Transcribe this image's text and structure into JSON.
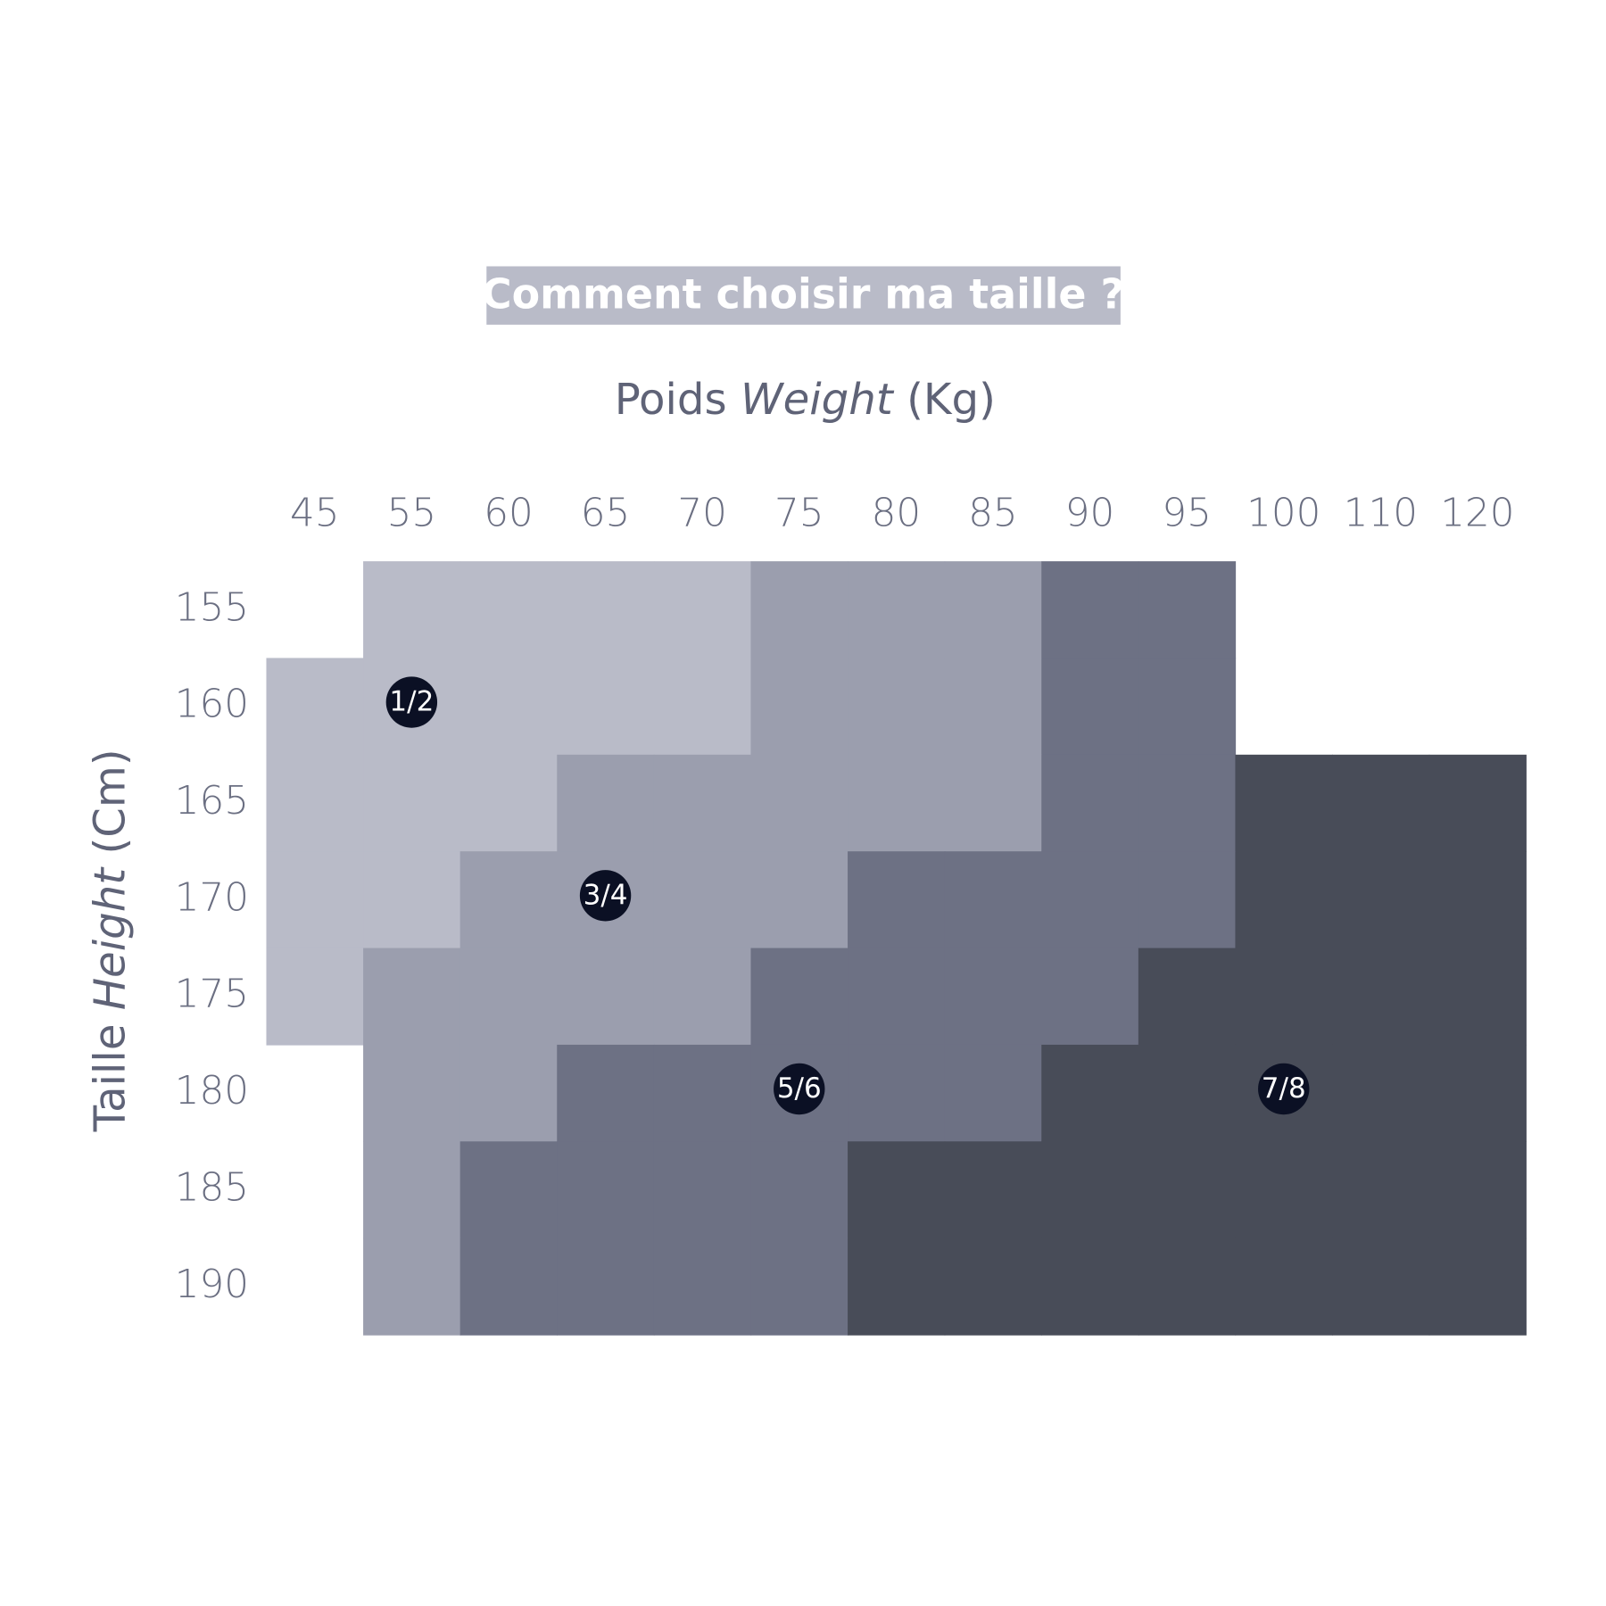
{
  "header": {
    "title": "Comment choisir ma taille ?"
  },
  "x_axis": {
    "title": "Poids",
    "title_italic": "Weight",
    "unit": "(Kg)"
  },
  "y_axis": {
    "title": "Taille",
    "title_italic": "Height",
    "unit": "(Cm)"
  },
  "columns": [
    45,
    55,
    60,
    65,
    70,
    75,
    80,
    85,
    90,
    95,
    100,
    110,
    120
  ],
  "rows": [
    155,
    160,
    165,
    170,
    175,
    180,
    185,
    190
  ],
  "sizes": [
    {
      "label": "1/2",
      "color": "#b9bbc8"
    },
    {
      "label": "3/4",
      "color": "#9b9eae"
    },
    {
      "label": "5/6",
      "color": "#6d7184"
    },
    {
      "label": "7/8",
      "color": "#484c58"
    }
  ],
  "grid": [
    [
      null,
      "1/2",
      "1/2",
      "1/2",
      "1/2",
      "3/4",
      "3/4",
      "3/4",
      "5/6",
      "5/6",
      null,
      null,
      null
    ],
    [
      "1/2",
      "1/2",
      "1/2",
      "1/2",
      "1/2",
      "3/4",
      "3/4",
      "3/4",
      "5/6",
      "5/6",
      null,
      null,
      null
    ],
    [
      "1/2",
      "1/2",
      "1/2",
      "3/4",
      "3/4",
      "3/4",
      "3/4",
      "3/4",
      "5/6",
      "5/6",
      "7/8",
      "7/8",
      "7/8"
    ],
    [
      "1/2",
      "1/2",
      "3/4",
      "3/4",
      "3/4",
      "3/4",
      "5/6",
      "5/6",
      "5/6",
      "5/6",
      "7/8",
      "7/8",
      "7/8"
    ],
    [
      "1/2",
      "3/4",
      "3/4",
      "3/4",
      "3/4",
      "5/6",
      "5/6",
      "5/6",
      "5/6",
      "7/8",
      "7/8",
      "7/8",
      "7/8"
    ],
    [
      null,
      "3/4",
      "3/4",
      "5/6",
      "5/6",
      "5/6",
      "5/6",
      "5/6",
      "7/8",
      "7/8",
      "7/8",
      "7/8",
      "7/8"
    ],
    [
      null,
      "3/4",
      "5/6",
      "5/6",
      "5/6",
      "5/6",
      "7/8",
      "7/8",
      "7/8",
      "7/8",
      "7/8",
      "7/8",
      "7/8"
    ],
    [
      null,
      "3/4",
      "5/6",
      "5/6",
      "5/6",
      "5/6",
      "7/8",
      "7/8",
      "7/8",
      "7/8",
      "7/8",
      "7/8",
      "7/8"
    ]
  ]
}
